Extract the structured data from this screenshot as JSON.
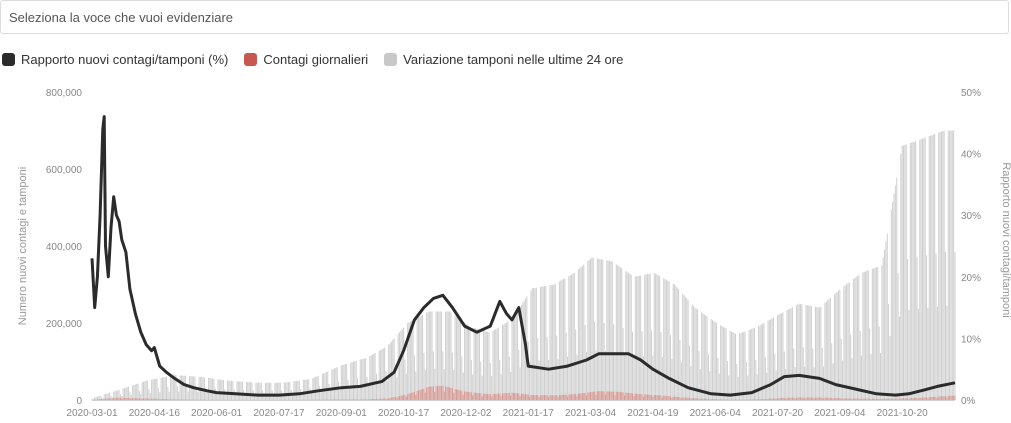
{
  "selector": {
    "placeholder": "Seleziona la voce che vuoi evidenziare"
  },
  "legend": [
    {
      "label": "Rapporto nuovi contagi/tamponi (%)",
      "color": "#2b2b2b"
    },
    {
      "label": "Contagi giornalieri",
      "color": "#c8584f"
    },
    {
      "label": "Variazione tamponi nelle ultime 24 ore",
      "color": "#c8c8c8"
    }
  ],
  "chart_data": {
    "type": "bar",
    "x_type": "date",
    "x_start": "2020-03-01",
    "x_end": "2021-11-28",
    "x_ticks": [
      "2020-03-01",
      "2020-04-16",
      "2020-06-01",
      "2020-07-17",
      "2020-09-01",
      "2020-10-17",
      "2020-12-02",
      "2021-01-17",
      "2021-03-04",
      "2021-04-19",
      "2021-06-04",
      "2021-07-20",
      "2021-09-04",
      "2021-10-20"
    ],
    "ylabel_left": "Numero nuovi contagi e tamponi",
    "ylabel_right": "Rapporto nuovi contagi/tamponi",
    "ylim_left": [
      0,
      800000
    ],
    "yticks_left": [
      "0",
      "200,000",
      "400,000",
      "600,000",
      "800,000"
    ],
    "ylim_right": [
      0,
      50
    ],
    "yticks_right": [
      "0%",
      "10%",
      "20%",
      "30%",
      "40%",
      "50%"
    ],
    "series": [
      {
        "name": "Variazione tamponi nelle ultime 24 ore",
        "axis": "left",
        "type": "bar",
        "points": [
          [
            "2020-03-01",
            5000
          ],
          [
            "2020-03-20",
            25000
          ],
          [
            "2020-04-10",
            50000
          ],
          [
            "2020-05-01",
            65000
          ],
          [
            "2020-05-20",
            60000
          ],
          [
            "2020-06-10",
            50000
          ],
          [
            "2020-07-01",
            45000
          ],
          [
            "2020-07-20",
            45000
          ],
          [
            "2020-08-10",
            55000
          ],
          [
            "2020-09-01",
            90000
          ],
          [
            "2020-09-20",
            110000
          ],
          [
            "2020-10-05",
            140000
          ],
          [
            "2020-10-20",
            200000
          ],
          [
            "2020-11-05",
            230000
          ],
          [
            "2020-11-20",
            230000
          ],
          [
            "2020-12-05",
            190000
          ],
          [
            "2020-12-20",
            175000
          ],
          [
            "2021-01-05",
            210000
          ],
          [
            "2021-01-20",
            290000
          ],
          [
            "2021-02-05",
            300000
          ],
          [
            "2021-02-20",
            330000
          ],
          [
            "2021-03-05",
            370000
          ],
          [
            "2021-03-20",
            360000
          ],
          [
            "2021-04-05",
            320000
          ],
          [
            "2021-04-20",
            330000
          ],
          [
            "2021-05-05",
            300000
          ],
          [
            "2021-05-20",
            240000
          ],
          [
            "2021-06-05",
            200000
          ],
          [
            "2021-06-20",
            170000
          ],
          [
            "2021-07-05",
            190000
          ],
          [
            "2021-07-20",
            220000
          ],
          [
            "2021-08-05",
            250000
          ],
          [
            "2021-08-20",
            240000
          ],
          [
            "2021-09-05",
            290000
          ],
          [
            "2021-09-20",
            330000
          ],
          [
            "2021-10-05",
            350000
          ],
          [
            "2021-10-20",
            660000
          ],
          [
            "2021-11-05",
            680000
          ],
          [
            "2021-11-20",
            700000
          ]
        ]
      },
      {
        "name": "Contagi giornalieri",
        "axis": "left",
        "type": "bar",
        "points": [
          [
            "2020-03-01",
            500
          ],
          [
            "2020-03-20",
            6000
          ],
          [
            "2020-04-10",
            4000
          ],
          [
            "2020-05-01",
            1500
          ],
          [
            "2020-06-01",
            400
          ],
          [
            "2020-07-01",
            200
          ],
          [
            "2020-08-01",
            400
          ],
          [
            "2020-09-01",
            1500
          ],
          [
            "2020-09-20",
            1800
          ],
          [
            "2020-10-05",
            4000
          ],
          [
            "2020-10-20",
            15000
          ],
          [
            "2020-11-05",
            35000
          ],
          [
            "2020-11-15",
            37000
          ],
          [
            "2020-12-01",
            22000
          ],
          [
            "2020-12-20",
            15000
          ],
          [
            "2021-01-05",
            19000
          ],
          [
            "2021-01-20",
            13000
          ],
          [
            "2021-02-05",
            12000
          ],
          [
            "2021-02-20",
            15000
          ],
          [
            "2021-03-10",
            23000
          ],
          [
            "2021-03-25",
            21000
          ],
          [
            "2021-04-10",
            15000
          ],
          [
            "2021-04-25",
            12000
          ],
          [
            "2021-05-10",
            7000
          ],
          [
            "2021-05-25",
            3500
          ],
          [
            "2021-06-10",
            1500
          ],
          [
            "2021-06-25",
            900
          ],
          [
            "2021-07-10",
            2500
          ],
          [
            "2021-07-25",
            5500
          ],
          [
            "2021-08-10",
            6500
          ],
          [
            "2021-08-25",
            6000
          ],
          [
            "2021-09-10",
            4000
          ],
          [
            "2021-09-25",
            3500
          ],
          [
            "2021-10-10",
            3000
          ],
          [
            "2021-10-25",
            4500
          ],
          [
            "2021-11-10",
            7500
          ],
          [
            "2021-11-25",
            11000
          ]
        ]
      },
      {
        "name": "Rapporto nuovi contagi/tamponi (%)",
        "axis": "right",
        "type": "line",
        "points": [
          [
            "2020-03-01",
            23
          ],
          [
            "2020-03-03",
            15
          ],
          [
            "2020-03-05",
            20
          ],
          [
            "2020-03-07",
            30
          ],
          [
            "2020-03-09",
            44
          ],
          [
            "2020-03-10",
            46
          ],
          [
            "2020-03-11",
            25
          ],
          [
            "2020-03-13",
            20
          ],
          [
            "2020-03-15",
            28
          ],
          [
            "2020-03-17",
            33
          ],
          [
            "2020-03-19",
            30
          ],
          [
            "2020-03-21",
            29
          ],
          [
            "2020-03-23",
            26
          ],
          [
            "2020-03-26",
            24
          ],
          [
            "2020-03-29",
            18
          ],
          [
            "2020-04-02",
            14
          ],
          [
            "2020-04-06",
            11
          ],
          [
            "2020-04-10",
            9
          ],
          [
            "2020-04-14",
            8
          ],
          [
            "2020-04-16",
            8.5
          ],
          [
            "2020-04-20",
            5.5
          ],
          [
            "2020-04-25",
            4.5
          ],
          [
            "2020-05-01",
            3.5
          ],
          [
            "2020-05-08",
            2.5
          ],
          [
            "2020-05-15",
            2
          ],
          [
            "2020-05-25",
            1.5
          ],
          [
            "2020-06-01",
            1.2
          ],
          [
            "2020-06-15",
            1
          ],
          [
            "2020-07-01",
            0.8
          ],
          [
            "2020-07-17",
            0.8
          ],
          [
            "2020-08-01",
            1
          ],
          [
            "2020-08-15",
            1.5
          ],
          [
            "2020-09-01",
            2
          ],
          [
            "2020-09-15",
            2.2
          ],
          [
            "2020-10-01",
            3
          ],
          [
            "2020-10-10",
            4.5
          ],
          [
            "2020-10-17",
            8
          ],
          [
            "2020-10-25",
            13
          ],
          [
            "2020-11-01",
            15
          ],
          [
            "2020-11-08",
            16.5
          ],
          [
            "2020-11-15",
            17
          ],
          [
            "2020-11-22",
            15
          ],
          [
            "2020-12-01",
            12
          ],
          [
            "2020-12-10",
            11
          ],
          [
            "2020-12-20",
            12
          ],
          [
            "2020-12-27",
            16
          ],
          [
            "2021-01-01",
            14
          ],
          [
            "2021-01-05",
            13
          ],
          [
            "2021-01-10",
            15
          ],
          [
            "2021-01-15",
            9
          ],
          [
            "2021-01-17",
            5.5
          ],
          [
            "2021-02-01",
            5
          ],
          [
            "2021-02-15",
            5.5
          ],
          [
            "2021-03-01",
            6.5
          ],
          [
            "2021-03-10",
            7.5
          ],
          [
            "2021-03-20",
            7.5
          ],
          [
            "2021-04-01",
            7.5
          ],
          [
            "2021-04-10",
            6.5
          ],
          [
            "2021-04-19",
            5
          ],
          [
            "2021-05-01",
            3.5
          ],
          [
            "2021-05-15",
            2
          ],
          [
            "2021-06-01",
            1
          ],
          [
            "2021-06-15",
            0.8
          ],
          [
            "2021-07-01",
            1.2
          ],
          [
            "2021-07-15",
            2.5
          ],
          [
            "2021-07-25",
            3.8
          ],
          [
            "2021-08-05",
            4
          ],
          [
            "2021-08-20",
            3.5
          ],
          [
            "2021-09-01",
            2.5
          ],
          [
            "2021-09-15",
            1.8
          ],
          [
            "2021-10-01",
            1
          ],
          [
            "2021-10-15",
            0.8
          ],
          [
            "2021-10-25",
            1
          ],
          [
            "2021-11-05",
            1.6
          ],
          [
            "2021-11-15",
            2.2
          ],
          [
            "2021-11-28",
            2.8
          ]
        ]
      }
    ]
  }
}
